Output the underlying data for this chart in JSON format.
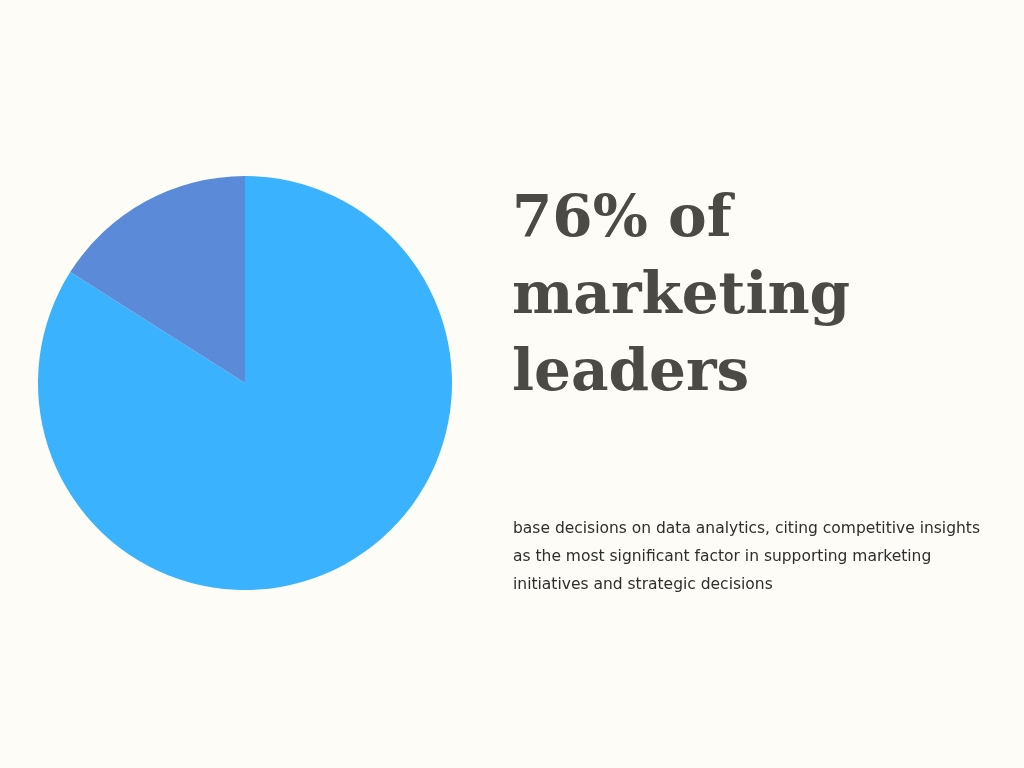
{
  "chart_data": {
    "type": "pie",
    "title": "76% of marketing leaders",
    "subtitle": "base decisions on data analytics, citing competitive insights as the most significant factor in supporting marketing initiatives and strategic decisions",
    "categories": [
      null,
      null
    ],
    "values": [
      84,
      16
    ],
    "colors": [
      "#3ab2fd",
      "#5b8ad8"
    ]
  }
}
